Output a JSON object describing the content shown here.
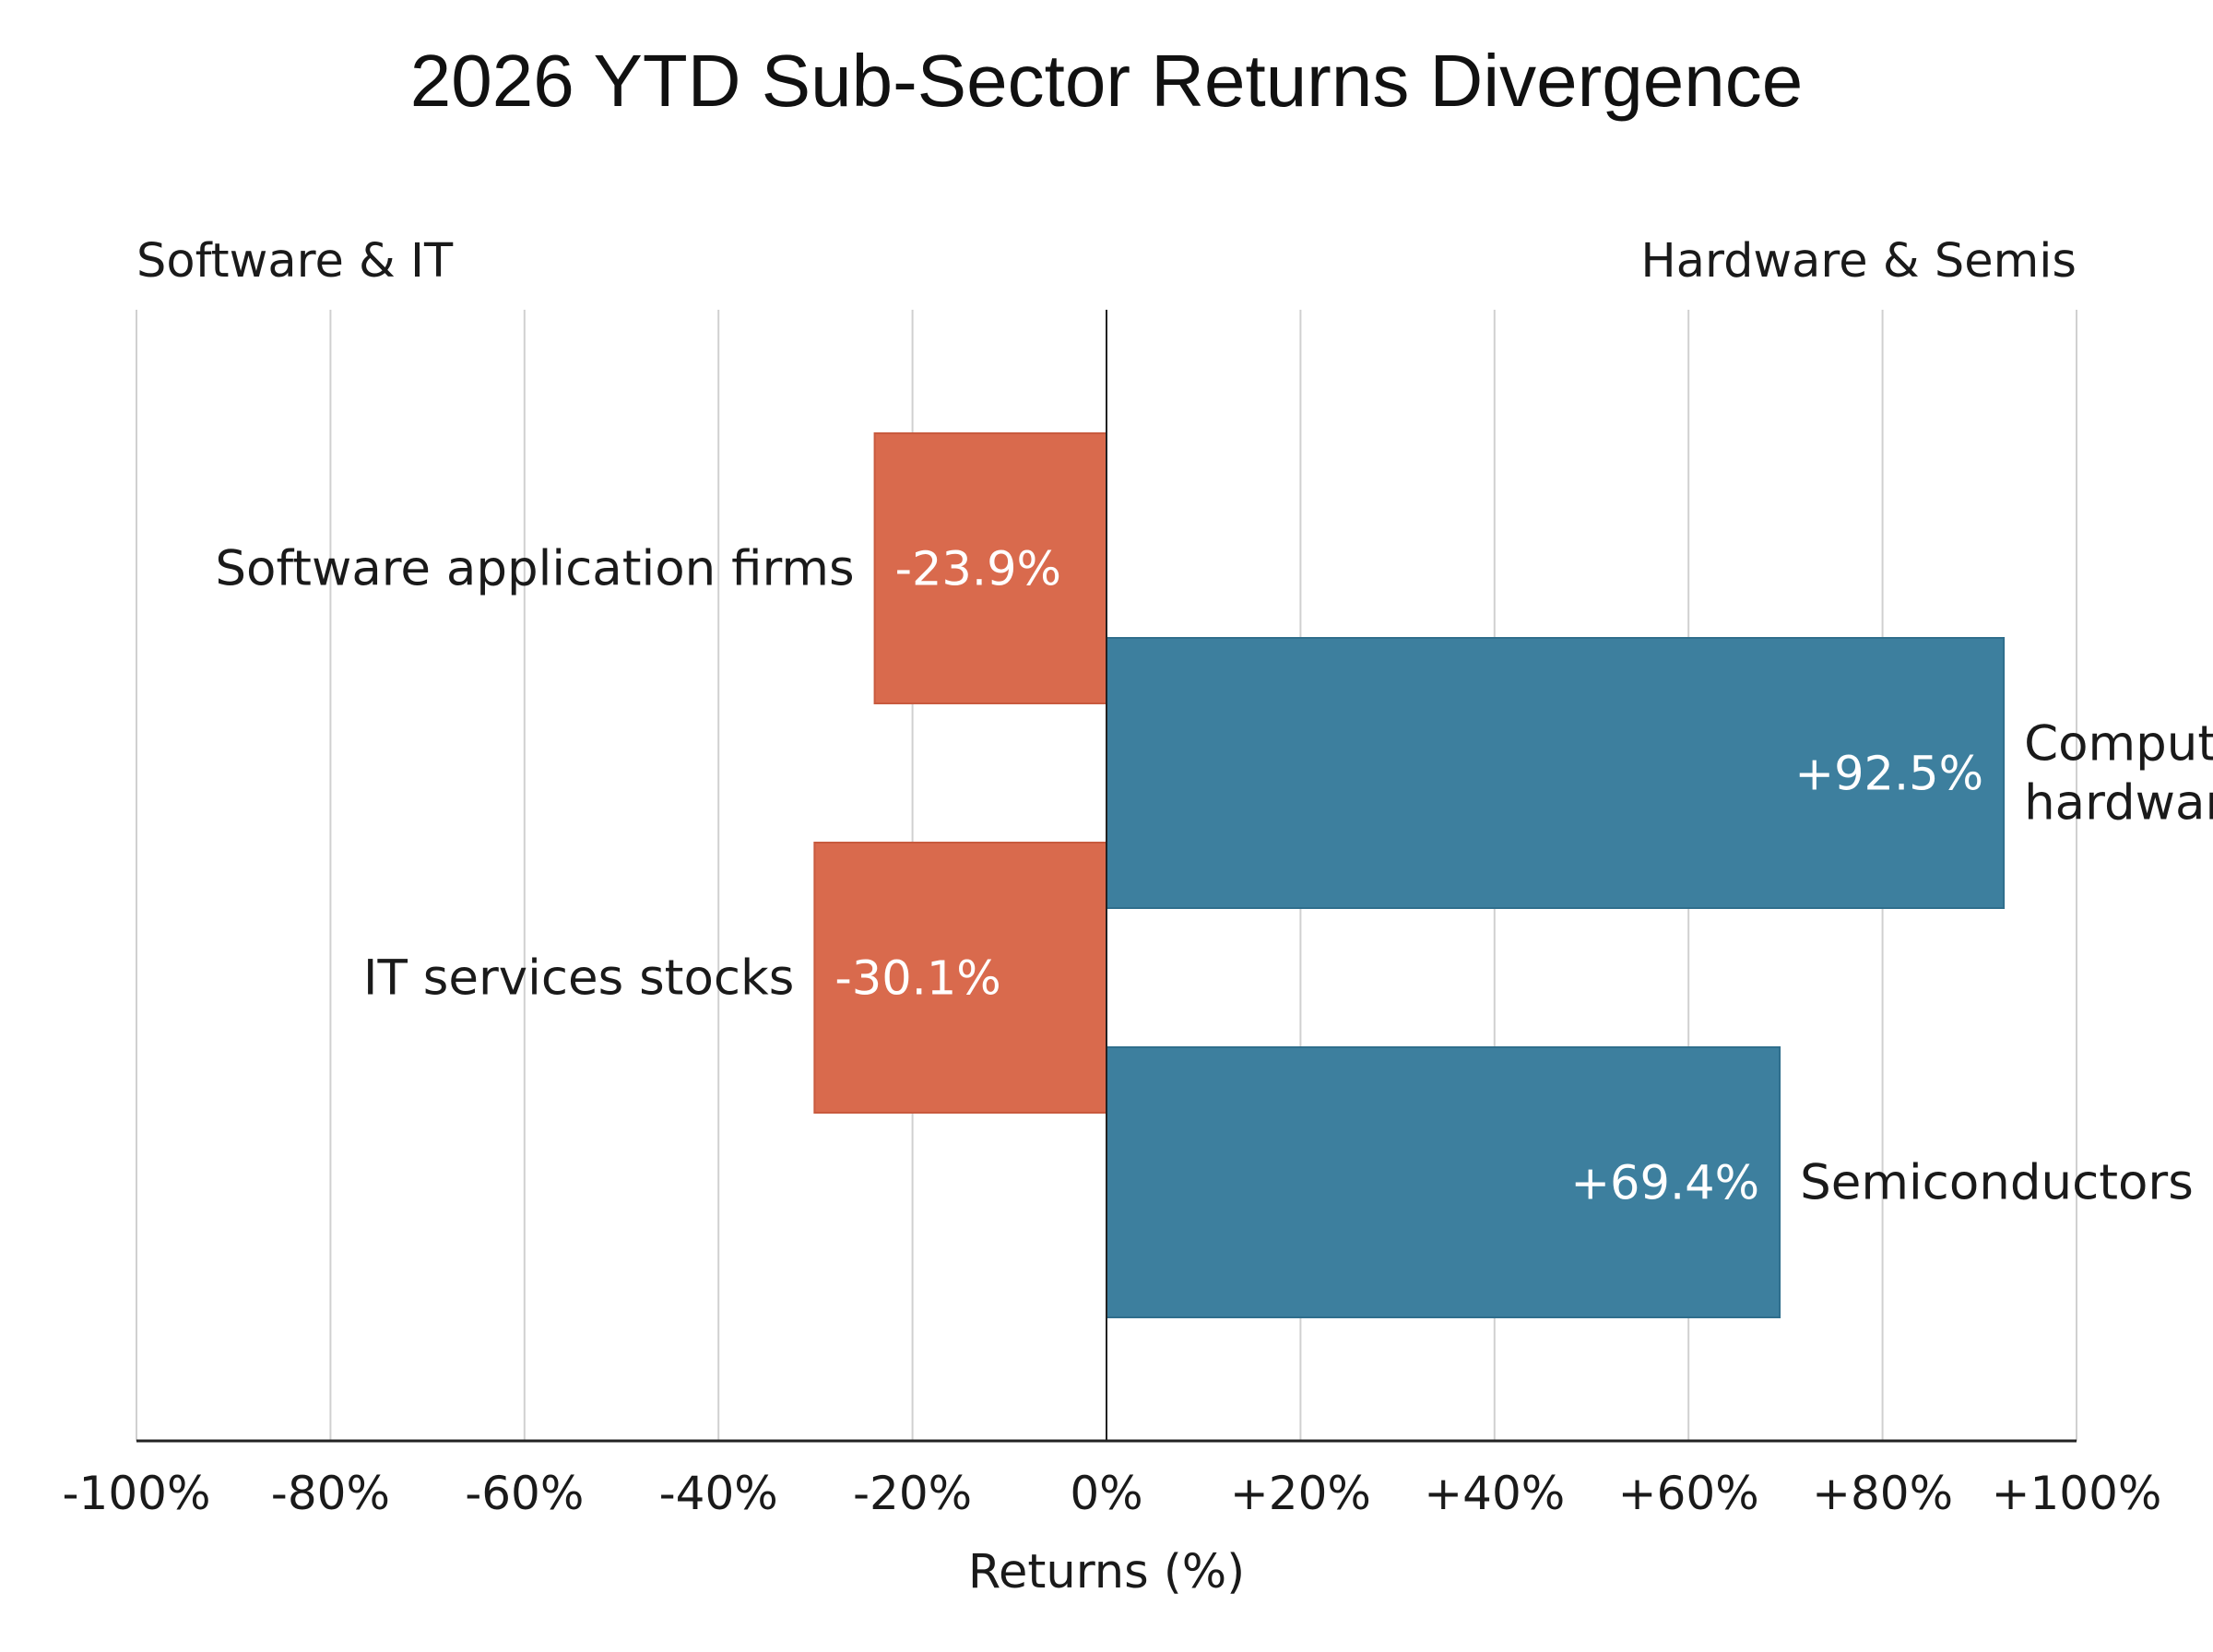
{
  "chart_data": {
    "type": "bar",
    "orientation": "horizontal",
    "title": "2026 YTD Sub-Sector Returns Divergence",
    "left_group_label": "Software & IT",
    "right_group_label": "Hardware & Semis",
    "xlabel": "Returns (%)",
    "ylabel": "",
    "xlim": [
      -100,
      100
    ],
    "xticks": [
      -100,
      -80,
      -60,
      -40,
      -20,
      0,
      20,
      40,
      60,
      80,
      100
    ],
    "tick_labels": [
      "-100%",
      "-80%",
      "-60%",
      "-40%",
      "-20%",
      "0%",
      "+20%",
      "+40%",
      "+60%",
      "+80%",
      "+100%"
    ],
    "grid": true,
    "bars": [
      {
        "category_lines": [
          "Software application firms"
        ],
        "value": -23.9,
        "label": "-23.9%"
      },
      {
        "category_lines": [
          "Computer",
          "hardware"
        ],
        "value": 92.5,
        "label": "+92.5%"
      },
      {
        "category_lines": [
          "IT services stocks"
        ],
        "value": -30.1,
        "label": "-30.1%"
      },
      {
        "category_lines": [
          "Semiconductors"
        ],
        "value": 69.4,
        "label": "+69.4%"
      }
    ],
    "colors": {
      "negative": "#d96a4d",
      "positive": "#3d7f9e",
      "grid": "#d0d0d0",
      "axis": "#222222"
    }
  }
}
